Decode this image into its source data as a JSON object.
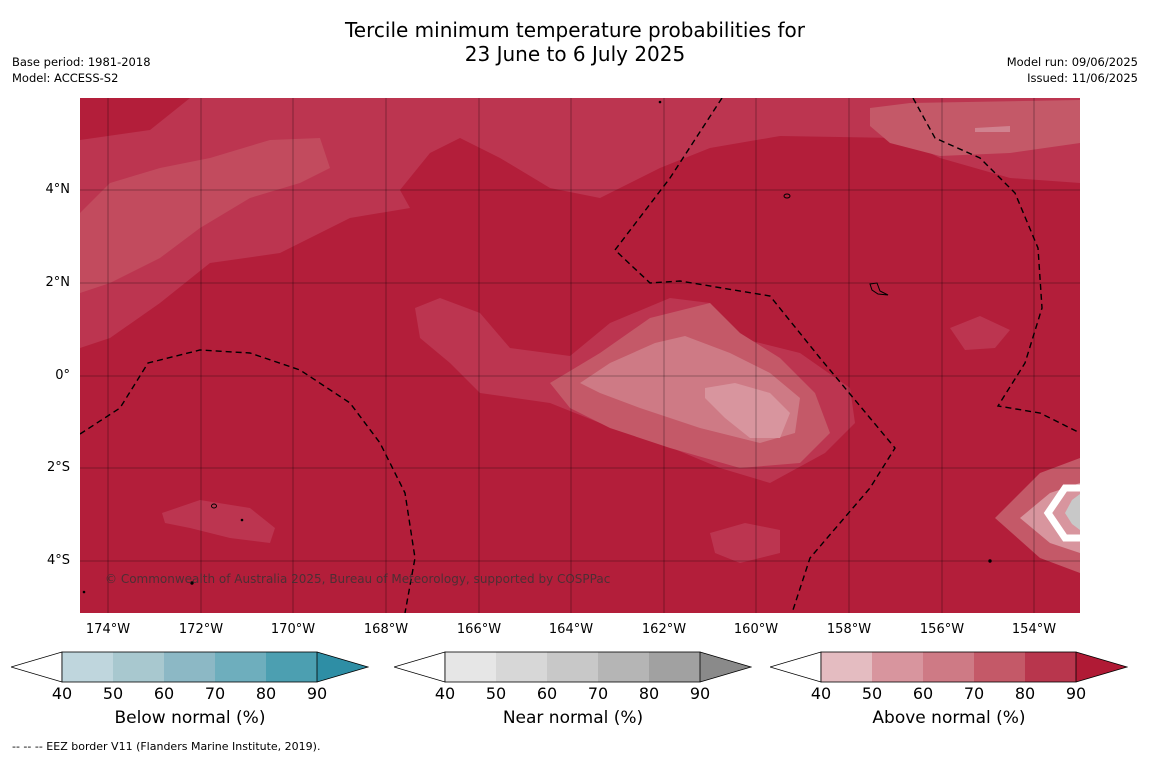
{
  "title": {
    "line1": "Tercile minimum temperature probabilities for",
    "line2": "23 June to 6 July 2025"
  },
  "meta_left": {
    "base_period": "Base period: 1981-2018",
    "model": "Model: ACCESS-S2"
  },
  "meta_right": {
    "model_run": "Model run: 09/06/2025",
    "issued": "Issued: 11/06/2025"
  },
  "map": {
    "lat_labels": [
      "4°N",
      "2°N",
      "0°",
      "2°S",
      "4°S"
    ],
    "lon_labels": [
      "174°W",
      "172°W",
      "170°W",
      "168°W",
      "166°W",
      "164°W",
      "162°W",
      "160°W",
      "158°W",
      "156°W",
      "154°W"
    ],
    "copyright": "© Commonwealth of Australia 2025, Bureau of Meteorology, supported by COSPPac",
    "base_color": "#b31e3a"
  },
  "colorbars": [
    {
      "label": "Below normal (%)",
      "ticks": [
        "40",
        "50",
        "60",
        "70",
        "80",
        "90"
      ],
      "colors": [
        "#bfd6dd",
        "#a8c8cf",
        "#8cb8c5",
        "#6eaebd",
        "#4c9fb1",
        "#2e8ea5"
      ]
    },
    {
      "label": "Near normal (%)",
      "ticks": [
        "40",
        "50",
        "60",
        "70",
        "80",
        "90"
      ],
      "colors": [
        "#e6e6e6",
        "#d7d7d7",
        "#c8c8c8",
        "#b5b5b5",
        "#a1a1a1",
        "#8a8a8a"
      ]
    },
    {
      "label": "Above normal (%)",
      "ticks": [
        "40",
        "50",
        "60",
        "70",
        "80",
        "90"
      ],
      "colors": [
        "#e4bcc1",
        "#d8959e",
        "#ce7a85",
        "#c45968",
        "#b8364d",
        "#b01a35"
      ]
    }
  ],
  "footnote": "--  --  -- EEZ border V11 (Flanders Marine Institute, 2019)."
}
